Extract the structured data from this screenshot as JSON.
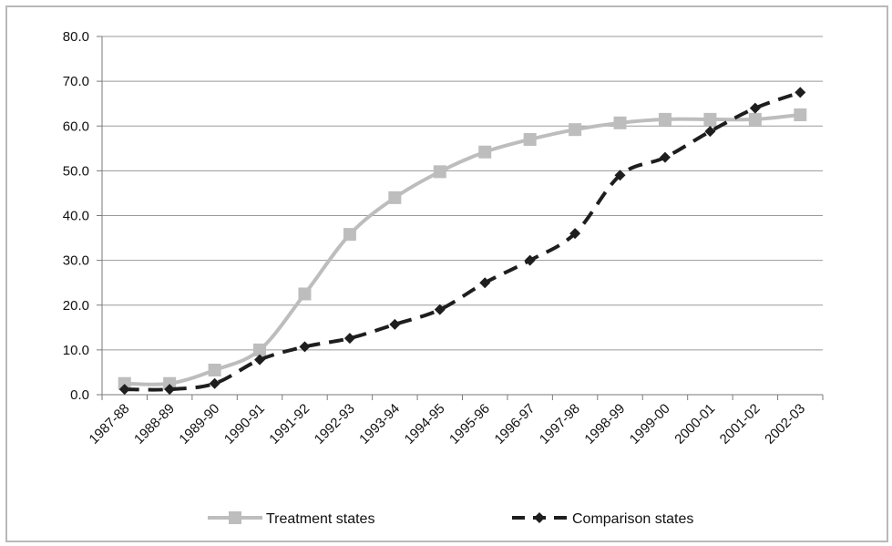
{
  "chart_data": {
    "type": "line",
    "title": "",
    "xlabel": "",
    "ylabel": "",
    "categories": [
      "1987-88",
      "1988-89",
      "1989-90",
      "1990-91",
      "1991-92",
      "1992-93",
      "1993-94",
      "1994-95",
      "1995-96",
      "1996-97",
      "1997-98",
      "1998-99",
      "1999-00",
      "2000-01",
      "2001-02",
      "2002-03"
    ],
    "ylim": [
      0,
      80
    ],
    "yticks": [
      "0.0",
      "10.0",
      "20.0",
      "30.0",
      "40.0",
      "50.0",
      "60.0",
      "70.0",
      "80.0"
    ],
    "grid": "horizontal",
    "legend_position": "bottom",
    "series": [
      {
        "name": "Treatment states",
        "color": "#bdbdbd",
        "marker": "square",
        "line_style": "solid",
        "values": [
          2.5,
          2.5,
          5.5,
          10.0,
          22.5,
          35.8,
          44.0,
          49.8,
          54.2,
          57.0,
          59.2,
          60.7,
          61.5,
          61.5,
          61.5,
          62.5
        ]
      },
      {
        "name": "Comparison states",
        "color": "#1e1e1e",
        "marker": "diamond",
        "line_style": "dashed",
        "values": [
          1.2,
          1.2,
          2.5,
          7.8,
          10.7,
          12.6,
          15.7,
          19.0,
          25.0,
          30.0,
          36.0,
          49.0,
          53.0,
          58.8,
          64.0,
          67.5
        ]
      }
    ]
  }
}
